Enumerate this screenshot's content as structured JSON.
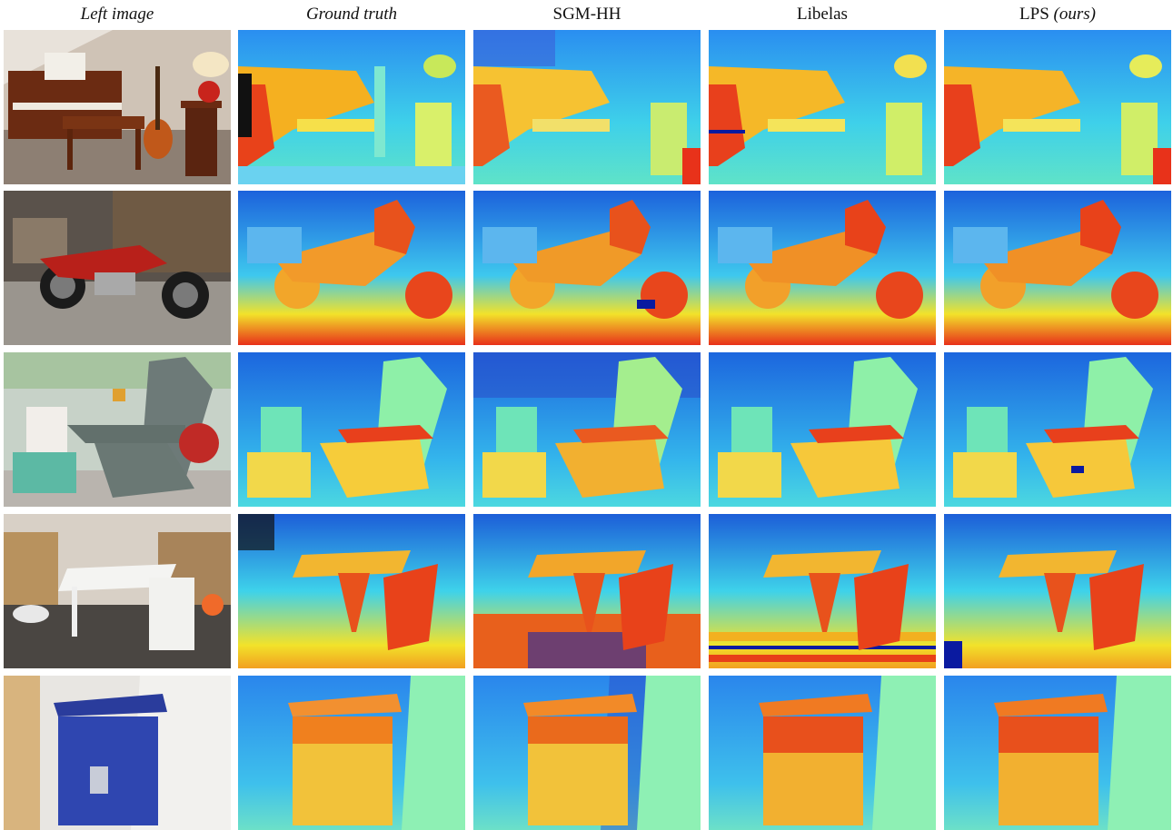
{
  "headers": {
    "left_image": "Left image",
    "ground_truth": "Ground truth",
    "sgm_hh": "SGM-HH",
    "libelas": "Libelas",
    "lps_main": "LPS",
    "lps_suffix": "(ours)"
  },
  "rows": [
    {
      "scene": "piano",
      "photo_bg": "#8a6e5c"
    },
    {
      "scene": "motorcycle",
      "photo_bg": "#6b625a"
    },
    {
      "scene": "adirondack",
      "photo_bg": "#9aa8a0"
    },
    {
      "scene": "playtable",
      "photo_bg": "#7a6e62"
    },
    {
      "scene": "recycle",
      "photo_bg": "#c9c8c4"
    }
  ],
  "colors": {
    "far": "#1f6fe0",
    "mid": "#39d3e8",
    "near_mid": "#f2d22a",
    "near": "#e8321a"
  }
}
